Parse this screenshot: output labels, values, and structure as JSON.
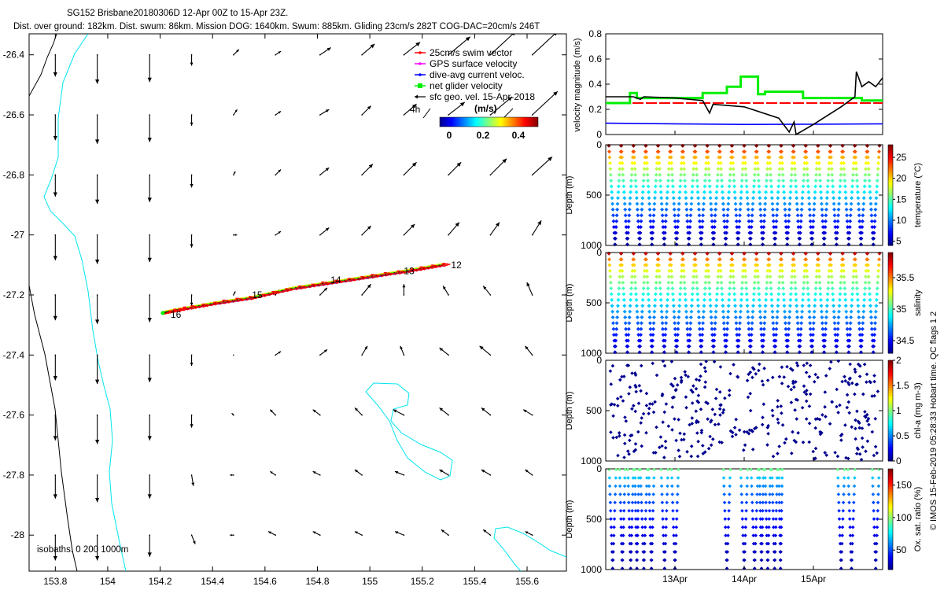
{
  "header": {
    "title": "SG152 Brisbane20180306D 12-Apr 00Z to 15-Apr 23Z.",
    "subtitle": "Dist. over ground: 182km. Dist. swum: 86km. Mission DOG: 1640km. Swum: 885km. Gliding 23cm/s 282T COG-DAC=20cm/s 246T"
  },
  "side_credit": "© IMOS 15-Feb-2019 05:28:33 Hobart time. QC flags 1  2",
  "colors": {
    "swim": "#ff0000",
    "gps": "#ff00ff",
    "dac": "#0000ff",
    "net": "#00ee00",
    "geo": "#000000",
    "isobath_coast": "#000000",
    "isobath_deep": "#00e5ee"
  },
  "chart_data": [
    {
      "id": "map",
      "type": "scatter",
      "title": "glider track with surface geostrophic velocity vectors",
      "xlim": [
        153.7,
        155.75
      ],
      "ylim": [
        -28.12,
        -26.33
      ],
      "xticks": [
        153.8,
        154,
        154.2,
        154.4,
        154.6,
        154.8,
        155,
        155.2,
        155.4,
        155.6
      ],
      "xtick_labels": [
        "153.8",
        "154",
        "154.2",
        "154.4",
        "154.6",
        "154.8",
        "155",
        "155.2",
        "155.4",
        "155.6"
      ],
      "yticks": [
        -26.4,
        -26.6,
        -26.8,
        -27,
        -27.2,
        -27.4,
        -27.6,
        -27.8,
        -28
      ],
      "ytick_labels": [
        "-26.4",
        "-26.6",
        "-26.8",
        "-27",
        "-27.2",
        "-27.4",
        "-27.6",
        "-27.8",
        "-28"
      ],
      "legend": [
        "25cm/s swim vector",
        "GPS surface velocity",
        "dive-avg current veloc.",
        "net glider velocity",
        "sfc geo. vel. 15-Apr-2018"
      ],
      "legend_4h": "4h",
      "colorbar": {
        "label": "(m/s)",
        "ticks": [
          "0",
          "0.2",
          "0.4"
        ],
        "range": [
          0,
          0.5
        ]
      },
      "isobath_label": "isobaths: 0   200  1000m",
      "grid_lon": [
        153.8,
        153.96,
        154.16,
        154.32,
        154.48,
        154.64,
        154.81,
        154.97,
        155.13,
        155.3,
        155.46,
        155.62
      ],
      "grid_lat": [
        -26.4,
        -26.6,
        -26.8,
        -27.0,
        -27.2,
        -27.4,
        -27.6,
        -27.8,
        -28.0
      ],
      "geo_vectors": [
        [
          [
            0.0,
            -0.12
          ],
          [
            0.0,
            -0.16
          ],
          [
            0.0,
            -0.15
          ],
          [
            0.0,
            -0.06
          ],
          [
            0.03,
            0.03
          ],
          [
            0.03,
            0.02
          ],
          [
            0.06,
            0.04
          ],
          [
            0.07,
            0.06
          ],
          [
            0.09,
            0.07
          ],
          [
            0.12,
            0.1
          ],
          [
            0.14,
            0.13
          ],
          [
            0.14,
            0.13
          ]
        ],
        [
          [
            0.0,
            -0.14
          ],
          [
            0.0,
            -0.16
          ],
          [
            0.0,
            -0.15
          ],
          [
            0.0,
            -0.06
          ],
          [
            0.02,
            0.03
          ],
          [
            0.03,
            0.02
          ],
          [
            0.05,
            0.03
          ],
          [
            0.05,
            0.05
          ],
          [
            0.07,
            0.06
          ],
          [
            0.09,
            0.07
          ],
          [
            0.12,
            0.1
          ],
          [
            0.14,
            0.13
          ]
        ],
        [
          [
            0.0,
            -0.12
          ],
          [
            0.0,
            -0.16
          ],
          [
            0.0,
            -0.15
          ],
          [
            0.0,
            -0.07
          ],
          [
            0.01,
            0.02
          ],
          [
            0.03,
            0.03
          ],
          [
            0.05,
            0.04
          ],
          [
            0.06,
            0.06
          ],
          [
            0.07,
            0.07
          ],
          [
            0.07,
            0.07
          ],
          [
            0.09,
            0.09
          ],
          [
            0.11,
            0.1
          ]
        ],
        [
          [
            0.0,
            -0.14
          ],
          [
            0.0,
            -0.16
          ],
          [
            0.0,
            -0.15
          ],
          [
            0.0,
            -0.07
          ],
          [
            0.02,
            0.0
          ],
          [
            0.03,
            0.02
          ],
          [
            0.05,
            0.04
          ],
          [
            0.05,
            0.05
          ],
          [
            0.06,
            0.06
          ],
          [
            0.06,
            0.07
          ],
          [
            0.05,
            0.07
          ],
          [
            0.05,
            0.08
          ]
        ],
        [
          [
            0.0,
            -0.14
          ],
          [
            0.0,
            -0.16
          ],
          [
            0.0,
            -0.15
          ],
          [
            0.0,
            -0.06
          ],
          [
            0.01,
            0.02
          ],
          [
            0.02,
            0.03
          ],
          [
            0.04,
            0.04
          ],
          [
            0.05,
            0.06
          ],
          [
            0.0,
            0.06
          ],
          [
            -0.03,
            0.05
          ],
          [
            -0.04,
            0.05
          ],
          [
            -0.03,
            0.07
          ]
        ],
        [
          [
            0.0,
            -0.14
          ],
          [
            0.0,
            -0.16
          ],
          [
            0.0,
            -0.15
          ],
          [
            0.0,
            -0.06
          ],
          [
            0.0,
            0.0
          ],
          [
            0.03,
            0.02
          ],
          [
            0.04,
            0.03
          ],
          [
            0.03,
            0.05
          ],
          [
            -0.02,
            0.05
          ],
          [
            -0.05,
            0.04
          ],
          [
            -0.06,
            0.05
          ],
          [
            -0.04,
            0.05
          ]
        ],
        [
          [
            0.0,
            -0.14
          ],
          [
            0.0,
            -0.16
          ],
          [
            0.0,
            -0.14
          ],
          [
            0.0,
            -0.07
          ],
          [
            -0.01,
            0.01
          ],
          [
            -0.03,
            0.03
          ],
          [
            -0.04,
            0.03
          ],
          [
            -0.04,
            0.04
          ],
          [
            -0.06,
            0.03
          ],
          [
            -0.05,
            0.04
          ],
          [
            -0.05,
            0.04
          ],
          [
            -0.05,
            0.03
          ]
        ],
        [
          [
            0.0,
            -0.13
          ],
          [
            0.0,
            -0.15
          ],
          [
            0.0,
            -0.13
          ],
          [
            0.01,
            -0.06
          ],
          [
            -0.02,
            0.0
          ],
          [
            -0.03,
            0.02
          ],
          [
            -0.04,
            0.02
          ],
          [
            -0.04,
            0.03
          ],
          [
            -0.05,
            0.02
          ],
          [
            -0.05,
            0.03
          ],
          [
            -0.05,
            0.03
          ],
          [
            -0.04,
            0.03
          ]
        ],
        [
          [
            0.0,
            -0.14
          ],
          [
            0.0,
            -0.14
          ],
          [
            0.0,
            -0.12
          ],
          [
            0.02,
            -0.05
          ],
          [
            -0.02,
            0.0
          ],
          [
            -0.04,
            0.02
          ],
          [
            -0.04,
            0.02
          ],
          [
            -0.04,
            0.02
          ],
          [
            -0.05,
            0.02
          ],
          [
            -0.04,
            0.03
          ],
          [
            -0.04,
            0.03
          ],
          [
            -0.04,
            0.02
          ]
        ]
      ],
      "track": {
        "lon": [
          155.28,
          155.15,
          155.0,
          154.85,
          154.7,
          154.55,
          154.4,
          154.27,
          154.21
        ],
        "lat": [
          -27.1,
          -27.12,
          -27.14,
          -27.16,
          -27.18,
          -27.21,
          -27.23,
          -27.25,
          -27.26
        ]
      },
      "day_markers": [
        {
          "label": "12",
          "lon": 155.31,
          "lat": -27.1
        },
        {
          "label": "13",
          "lon": 155.13,
          "lat": -27.12
        },
        {
          "label": "14",
          "lon": 154.85,
          "lat": -27.15
        },
        {
          "label": "15",
          "lon": 154.55,
          "lat": -27.2
        },
        {
          "label": "16",
          "lon": 154.24,
          "lat": -27.265
        }
      ]
    },
    {
      "id": "velocity",
      "type": "line",
      "ylabel": "velocity magnitude (m/s)",
      "ylim": [
        0,
        0.8
      ],
      "yticks": [
        0,
        0.2,
        0.4,
        0.6,
        0.8
      ],
      "ytick_labels": [
        "0",
        "0.2",
        "0.4",
        "0.6",
        "0.8"
      ],
      "xlim": [
        12.0,
        16.0
      ],
      "series": [
        {
          "name": "dive-avg current veloc.",
          "color": "#0000ff",
          "t": [
            12.0,
            13.0,
            14.0,
            15.0,
            16.0
          ],
          "v": [
            0.09,
            0.085,
            0.08,
            0.082,
            0.085
          ]
        },
        {
          "name": "25cm/s swim vector",
          "color": "#ff0000",
          "dashed": true,
          "t": [
            12.0,
            16.0
          ],
          "v": [
            0.25,
            0.25
          ]
        },
        {
          "name": "net glider velocity",
          "color": "#00ee00",
          "t": [
            12.0,
            12.35,
            12.35,
            12.45,
            12.45,
            13.4,
            13.4,
            13.75,
            13.75,
            13.95,
            13.95,
            14.2,
            14.2,
            14.3,
            14.3,
            14.85,
            14.85,
            15.7,
            15.7,
            16.0
          ],
          "v": [
            0.25,
            0.25,
            0.33,
            0.33,
            0.29,
            0.29,
            0.33,
            0.33,
            0.38,
            0.38,
            0.46,
            0.46,
            0.32,
            0.32,
            0.34,
            0.34,
            0.29,
            0.29,
            0.27,
            0.27
          ]
        },
        {
          "name": "sfc geo. vel.",
          "color": "#000000",
          "t": [
            12.0,
            12.4,
            12.5,
            12.55,
            13.0,
            13.4,
            13.5,
            13.55,
            14.0,
            14.5,
            14.65,
            14.72,
            14.75,
            15.0,
            15.4,
            15.6,
            15.62,
            15.7,
            15.8,
            15.9,
            16.0
          ],
          "v": [
            0.3,
            0.3,
            0.28,
            0.3,
            0.29,
            0.27,
            0.17,
            0.24,
            0.22,
            0.13,
            0.02,
            0.1,
            0.0,
            0.08,
            0.22,
            0.3,
            0.5,
            0.38,
            0.42,
            0.38,
            0.45
          ]
        }
      ]
    },
    {
      "id": "temperature",
      "type": "scatter",
      "ylabel": "Depth (m)",
      "cbar_label": "temperature (°C)",
      "ylim": [
        1000,
        0
      ],
      "yticks": [
        0,
        500,
        1000
      ],
      "ytick_labels": [
        "0",
        "500",
        "1000"
      ],
      "clim": [
        4,
        28
      ],
      "cticks": [
        5,
        10,
        15,
        20,
        25
      ],
      "ctick_labels": [
        "5",
        "10",
        "15",
        "20",
        "25"
      ],
      "profiles": 22,
      "max_depth": 1000,
      "surface_value": 28,
      "deep_value": 4.5
    },
    {
      "id": "salinity",
      "type": "scatter",
      "ylabel": "Depth (m)",
      "cbar_label": "salinity",
      "ylim": [
        1000,
        0
      ],
      "yticks": [
        0,
        500,
        1000
      ],
      "ytick_labels": [
        "0",
        "500",
        "1000"
      ],
      "clim": [
        34.3,
        35.9
      ],
      "cticks": [
        34.5,
        35,
        35.5
      ],
      "ctick_labels": [
        "34.5",
        "35",
        "35.5"
      ],
      "profiles": 22,
      "max_depth": 1000,
      "surface_value": 35.8,
      "deep_value": 34.4
    },
    {
      "id": "chla",
      "type": "scatter",
      "ylabel": "Depth (m)",
      "cbar_label": "chl-a (mg m-3)",
      "ylim": [
        1000,
        0
      ],
      "yticks": [
        0,
        500,
        1000
      ],
      "ytick_labels": [
        "0",
        "500",
        "1000"
      ],
      "clim": [
        0,
        2
      ],
      "cticks": [
        0,
        0.5,
        1,
        1.5,
        2
      ],
      "ctick_labels": [
        "0",
        "0.5",
        "1",
        "1.5",
        "2"
      ],
      "points": 380,
      "value": 0.02
    },
    {
      "id": "oxygen",
      "type": "scatter",
      "ylabel": "Depth (m)",
      "cbar_label": "Ox. sat. ratio (%)",
      "ylim": [
        1000,
        0
      ],
      "yticks": [
        0,
        500,
        1000
      ],
      "ytick_labels": [
        "0",
        "500",
        "1000"
      ],
      "clim": [
        20,
        175
      ],
      "cticks": [
        50,
        100,
        150
      ],
      "ctick_labels": [
        "50",
        "100",
        "150"
      ],
      "xlim": [
        12.0,
        16.0
      ],
      "xticks": [
        13,
        14,
        15
      ],
      "xtick_labels": [
        "13Apr",
        "14Apr",
        "15Apr"
      ],
      "segments": [
        [
          12.05,
          12.15
        ],
        [
          12.2,
          12.28
        ],
        [
          12.32,
          12.4
        ],
        [
          12.42,
          12.48
        ],
        [
          12.5,
          12.6
        ],
        [
          12.62,
          12.7
        ],
        [
          12.8,
          12.9
        ],
        [
          12.95,
          13.05
        ],
        [
          13.7,
          13.8
        ],
        [
          13.95,
          14.05
        ],
        [
          14.1,
          14.2
        ],
        [
          14.22,
          14.28
        ],
        [
          14.3,
          14.38
        ],
        [
          14.4,
          14.48
        ],
        [
          14.5,
          14.55
        ],
        [
          15.35,
          15.45
        ],
        [
          15.5,
          15.6
        ],
        [
          15.85,
          15.95
        ]
      ],
      "surface_value": 95,
      "deep_value": 25
    }
  ]
}
